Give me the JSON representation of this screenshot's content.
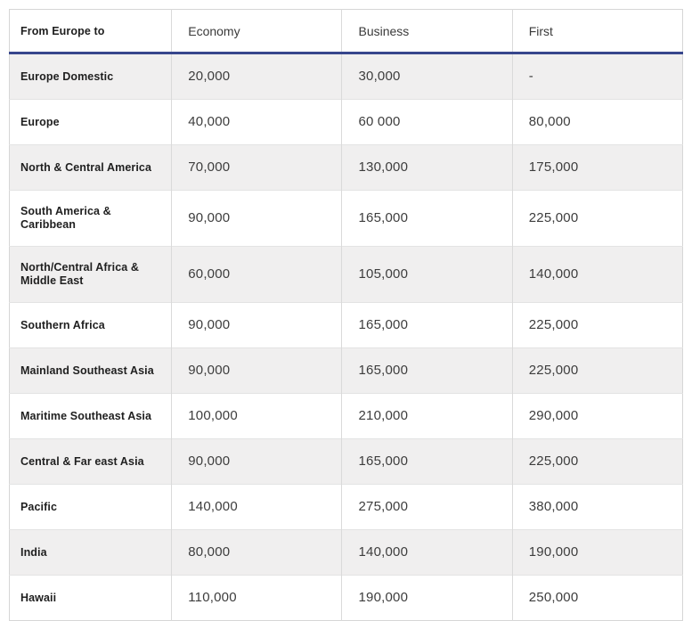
{
  "table": {
    "columns": [
      {
        "label": "From Europe to"
      },
      {
        "label": "Economy"
      },
      {
        "label": "Business"
      },
      {
        "label": "First"
      }
    ],
    "rows": [
      {
        "region": "Europe Domestic",
        "economy": "20,000",
        "business": "30,000",
        "first": "-"
      },
      {
        "region": "Europe",
        "economy": "40,000",
        "business": "60 000",
        "first": "80,000"
      },
      {
        "region": "North & Central America",
        "economy": "70,000",
        "business": "130,000",
        "first": "175,000"
      },
      {
        "region": "South America & Caribbean",
        "economy": "90,000",
        "business": "165,000",
        "first": "225,000"
      },
      {
        "region": "North/Central Africa & Middle East",
        "economy": "60,000",
        "business": "105,000",
        "first": "140,000"
      },
      {
        "region": "Southern Africa",
        "economy": "90,000",
        "business": "165,000",
        "first": "225,000"
      },
      {
        "region": "Mainland Southeast Asia",
        "economy": "90,000",
        "business": "165,000",
        "first": "225,000"
      },
      {
        "region": "Maritime Southeast Asia",
        "economy": "100,000",
        "business": "210,000",
        "first": "290,000"
      },
      {
        "region": "Central & Far east Asia",
        "economy": "90,000",
        "business": "165,000",
        "first": "225,000"
      },
      {
        "region": "Pacific",
        "economy": "140,000",
        "business": "275,000",
        "first": "380,000"
      },
      {
        "region": "India",
        "economy": "80,000",
        "business": "140,000",
        "first": "190,000"
      },
      {
        "region": "Hawaii",
        "economy": "110,000",
        "business": "190,000",
        "first": "250,000"
      }
    ]
  },
  "colors": {
    "header_underline": "#37468c",
    "row_alt_background": "#f0efef",
    "cell_border": "#dadada",
    "label_text": "#1f1f1f",
    "value_text": "#3d3d3d"
  },
  "chart_data": {
    "type": "table",
    "title": "From Europe to",
    "columns": [
      "From Europe to",
      "Economy",
      "Business",
      "First"
    ],
    "categories": [
      "Europe Domestic",
      "Europe",
      "North & Central America",
      "South America & Caribbean",
      "North/Central Africa & Middle East",
      "Southern Africa",
      "Mainland Southeast Asia",
      "Maritime Southeast Asia",
      "Central & Far east Asia",
      "Pacific",
      "India",
      "Hawaii"
    ],
    "series": [
      {
        "name": "Economy",
        "values": [
          20000,
          40000,
          70000,
          90000,
          60000,
          90000,
          90000,
          100000,
          90000,
          140000,
          80000,
          110000
        ]
      },
      {
        "name": "Business",
        "values": [
          30000,
          60000,
          130000,
          165000,
          105000,
          165000,
          165000,
          210000,
          165000,
          275000,
          140000,
          190000
        ]
      },
      {
        "name": "First",
        "values": [
          null,
          80000,
          175000,
          225000,
          140000,
          225000,
          225000,
          290000,
          225000,
          380000,
          190000,
          250000
        ]
      }
    ]
  }
}
